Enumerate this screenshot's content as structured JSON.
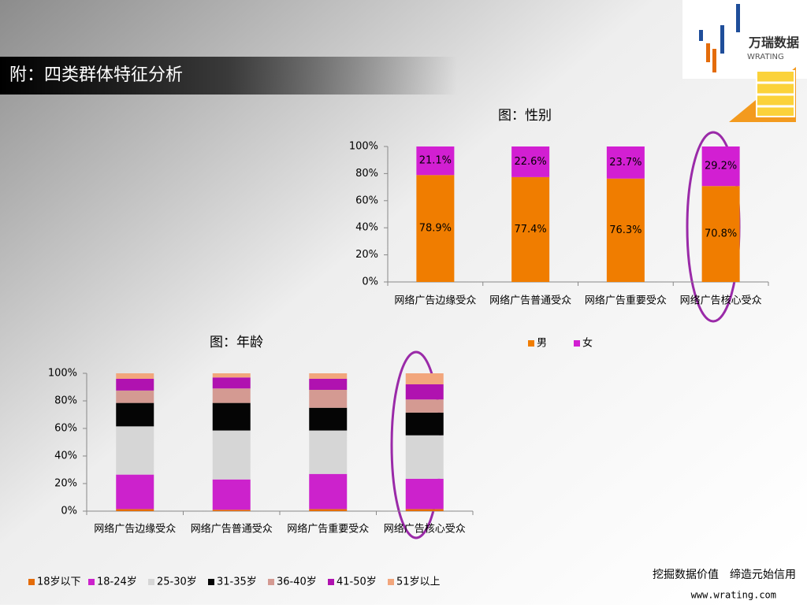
{
  "header": {
    "title": "附：四类群体特征分析"
  },
  "logo": {
    "name": "万瑞数据",
    "brand": "WRATING"
  },
  "footer": {
    "slogan": "挖掘数据价值　缔造元始信用",
    "url": "www.wrating.com"
  },
  "chart_data": [
    {
      "type": "bar",
      "stacked": true,
      "title": "图：性别",
      "categories": [
        "网络广告边缘受众",
        "网络广告普通受众",
        "网络广告重要受众",
        "网络广告核心受众"
      ],
      "series": [
        {
          "name": "男",
          "color": "#f07d00",
          "values": [
            78.9,
            77.4,
            76.3,
            70.8
          ],
          "value_labels": [
            "78.9%",
            "77.4%",
            "76.3%",
            "70.8%"
          ]
        },
        {
          "name": "女",
          "color": "#d21fd2",
          "values": [
            21.1,
            22.6,
            23.7,
            29.2
          ],
          "value_labels": [
            "21.1%",
            "22.6%",
            "23.7%",
            "29.2%"
          ]
        }
      ],
      "ylim": [
        0,
        100
      ],
      "yticks": [
        {
          "value": 0,
          "label": "0%"
        },
        {
          "value": 20,
          "label": "20%"
        },
        {
          "value": 40,
          "label": "40%"
        },
        {
          "value": 60,
          "label": "60%"
        },
        {
          "value": 80,
          "label": "80%"
        },
        {
          "value": 100,
          "label": "100%"
        }
      ],
      "legend": "bottom-right"
    },
    {
      "type": "bar",
      "stacked": true,
      "title": "图：年龄",
      "categories": [
        "网络广告边缘受众",
        "网络广告普通受众",
        "网络广告重要受众",
        "网络广告核心受众"
      ],
      "series": [
        {
          "name": "18岁以下",
          "color": "#e46c0a",
          "values": [
            1.5,
            1,
            1.5,
            1.5
          ]
        },
        {
          "name": "18-24岁",
          "color": "#cc22cc",
          "values": [
            25,
            22,
            25.5,
            22
          ]
        },
        {
          "name": "25-30岁",
          "color": "#d6d6d6",
          "values": [
            35,
            35.5,
            31.5,
            31.5
          ]
        },
        {
          "name": "31-35岁",
          "color": "#050505",
          "values": [
            17,
            20,
            16.5,
            16.5
          ]
        },
        {
          "name": "36-40岁",
          "color": "#d49a92",
          "values": [
            9,
            10.5,
            13,
            9.5
          ]
        },
        {
          "name": "41-50岁",
          "color": "#b012b0",
          "values": [
            8.5,
            8,
            8,
            11
          ]
        },
        {
          "name": "51岁以上",
          "color": "#f2a67c",
          "values": [
            4,
            3,
            4,
            8
          ]
        }
      ],
      "ylim": [
        0,
        100
      ],
      "yticks": [
        {
          "value": 0,
          "label": "0%"
        },
        {
          "value": 20,
          "label": "20%"
        },
        {
          "value": 40,
          "label": "40%"
        },
        {
          "value": 60,
          "label": "60%"
        },
        {
          "value": 80,
          "label": "80%"
        },
        {
          "value": 100,
          "label": "100%"
        }
      ],
      "legend": "bottom-left"
    }
  ]
}
